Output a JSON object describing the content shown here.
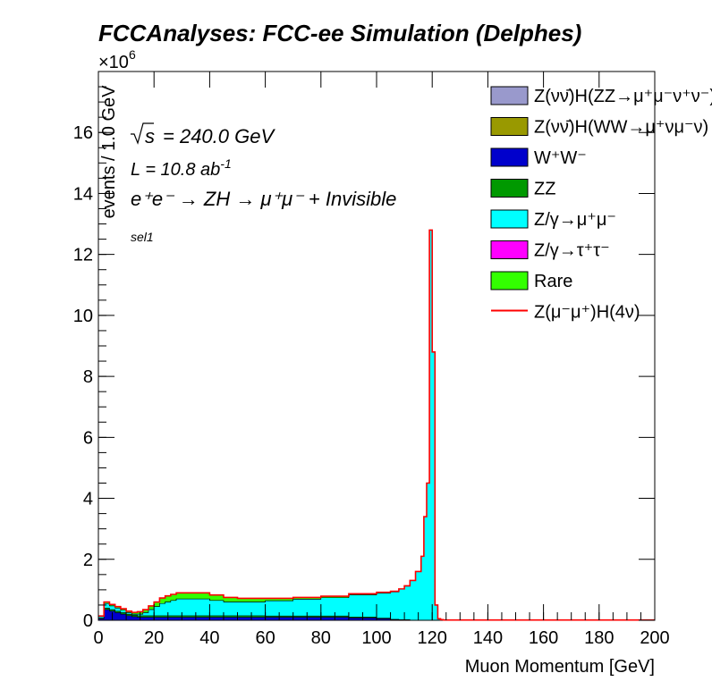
{
  "header": {
    "title": "FCCAnalyses: FCC-ee Simulation (Delphes)"
  },
  "annotations": {
    "sqrt_s": "= 240.0 GeV",
    "lumi_prefix": "L = 10.8 ab",
    "lumi_exp": "-1",
    "process": "e⁺e⁻ → ZH → μ⁺μ⁻ + Invisible",
    "selection": "sel1",
    "multiplier": "×10",
    "multiplier_exp": "6"
  },
  "chart_data": {
    "type": "area",
    "stacked": true,
    "xlabel": "Muon Momentum [GeV]",
    "ylabel": "events / 1.0 GeV",
    "xlim": [
      0,
      200
    ],
    "ylim": [
      0,
      18
    ],
    "y_unit_multiplier": 1000000,
    "x_ticks": [
      0,
      20,
      40,
      60,
      80,
      100,
      120,
      140,
      160,
      180,
      200
    ],
    "y_ticks": [
      0,
      2,
      4,
      6,
      8,
      10,
      12,
      14,
      16
    ],
    "bin_width": 1.0,
    "legend_position": "top-right",
    "x": [
      0,
      2,
      4,
      6,
      8,
      10,
      12,
      14,
      16,
      18,
      20,
      22,
      24,
      26,
      28,
      30,
      35,
      40,
      45,
      50,
      60,
      70,
      80,
      90,
      100,
      105,
      108,
      110,
      112,
      114,
      116,
      117,
      118,
      119,
      120,
      121,
      122,
      123,
      124,
      200
    ],
    "series": [
      {
        "name": "Z(νν̄)H(ZZ→μ⁺μ⁻ν⁺ν⁻)",
        "color": "#9999cc",
        "values": [
          0,
          0,
          0,
          0,
          0,
          0,
          0,
          0,
          0,
          0,
          0,
          0,
          0,
          0,
          0,
          0,
          0,
          0,
          0,
          0,
          0,
          0,
          0,
          0,
          0,
          0,
          0,
          0,
          0,
          0,
          0,
          0,
          0,
          0,
          0,
          0,
          0,
          0,
          0,
          0
        ]
      },
      {
        "name": "Z(νν̄)H(WW→μ⁺νμ⁻ν)",
        "color": "#999900",
        "values": [
          0,
          0,
          0,
          0,
          0,
          0,
          0,
          0,
          0,
          0,
          0,
          0,
          0,
          0,
          0,
          0,
          0,
          0,
          0,
          0,
          0,
          0,
          0,
          0,
          0,
          0,
          0,
          0,
          0,
          0,
          0,
          0,
          0,
          0,
          0,
          0,
          0,
          0,
          0,
          0
        ]
      },
      {
        "name": "W⁺W⁻",
        "color": "#0000cc",
        "values": [
          0.05,
          0.35,
          0.3,
          0.25,
          0.2,
          0.15,
          0.12,
          0.1,
          0.1,
          0.1,
          0.1,
          0.1,
          0.1,
          0.1,
          0.1,
          0.1,
          0.1,
          0.1,
          0.1,
          0.1,
          0.1,
          0.1,
          0.1,
          0.08,
          0.05,
          0.02,
          0.01,
          0.01,
          0.005,
          0,
          0,
          0,
          0,
          0,
          0,
          0,
          0,
          0,
          0,
          0
        ]
      },
      {
        "name": "ZZ",
        "color": "#009900",
        "values": [
          0.02,
          0.05,
          0.05,
          0.05,
          0.05,
          0.05,
          0.05,
          0.05,
          0.05,
          0.05,
          0.05,
          0.05,
          0.05,
          0.05,
          0.05,
          0.05,
          0.05,
          0.05,
          0.05,
          0.05,
          0.04,
          0.04,
          0.04,
          0.03,
          0.02,
          0.01,
          0.01,
          0.01,
          0,
          0,
          0,
          0,
          0,
          0,
          0,
          0,
          0,
          0,
          0,
          0
        ]
      },
      {
        "name": "Z/γ→μ⁺μ⁻",
        "color": "#00ffff",
        "values": [
          0.05,
          0.15,
          0.12,
          0.1,
          0.08,
          0.05,
          0.03,
          0.05,
          0.1,
          0.2,
          0.3,
          0.4,
          0.45,
          0.5,
          0.55,
          0.55,
          0.55,
          0.5,
          0.45,
          0.45,
          0.5,
          0.55,
          0.6,
          0.72,
          0.82,
          0.9,
          1.0,
          1.1,
          1.3,
          1.6,
          2.1,
          3.4,
          4.5,
          12.8,
          8.8,
          0.5,
          0.05,
          0.02,
          0.01,
          0.01
        ]
      },
      {
        "name": "Z/γ→τ⁺τ⁻",
        "color": "#ff00ff",
        "values": [
          0,
          0,
          0,
          0,
          0,
          0,
          0,
          0,
          0,
          0,
          0,
          0,
          0,
          0,
          0,
          0,
          0,
          0,
          0,
          0,
          0,
          0,
          0,
          0,
          0,
          0,
          0,
          0,
          0,
          0,
          0,
          0,
          0,
          0,
          0,
          0,
          0,
          0,
          0,
          0
        ]
      },
      {
        "name": "Rare",
        "color": "#33ff00",
        "values": [
          0.02,
          0.05,
          0.05,
          0.05,
          0.05,
          0.05,
          0.06,
          0.08,
          0.1,
          0.12,
          0.15,
          0.18,
          0.2,
          0.2,
          0.2,
          0.2,
          0.2,
          0.18,
          0.15,
          0.12,
          0.08,
          0.06,
          0.05,
          0.04,
          0.03,
          0.02,
          0.01,
          0.01,
          0,
          0,
          0,
          0,
          0,
          0,
          0,
          0,
          0,
          0,
          0,
          0
        ]
      },
      {
        "name": "Z(μ⁻μ⁺)H(4ν)",
        "color": "#ff0000",
        "style": "line",
        "values": [
          0,
          0,
          0,
          0,
          0,
          0,
          0,
          0,
          0,
          0,
          0,
          0,
          0,
          0,
          0,
          0,
          0,
          0,
          0,
          0,
          0,
          0,
          0,
          0,
          0,
          0,
          0,
          0,
          0,
          0,
          0,
          0,
          0,
          0,
          0,
          0,
          0,
          0,
          0,
          0
        ]
      }
    ]
  }
}
